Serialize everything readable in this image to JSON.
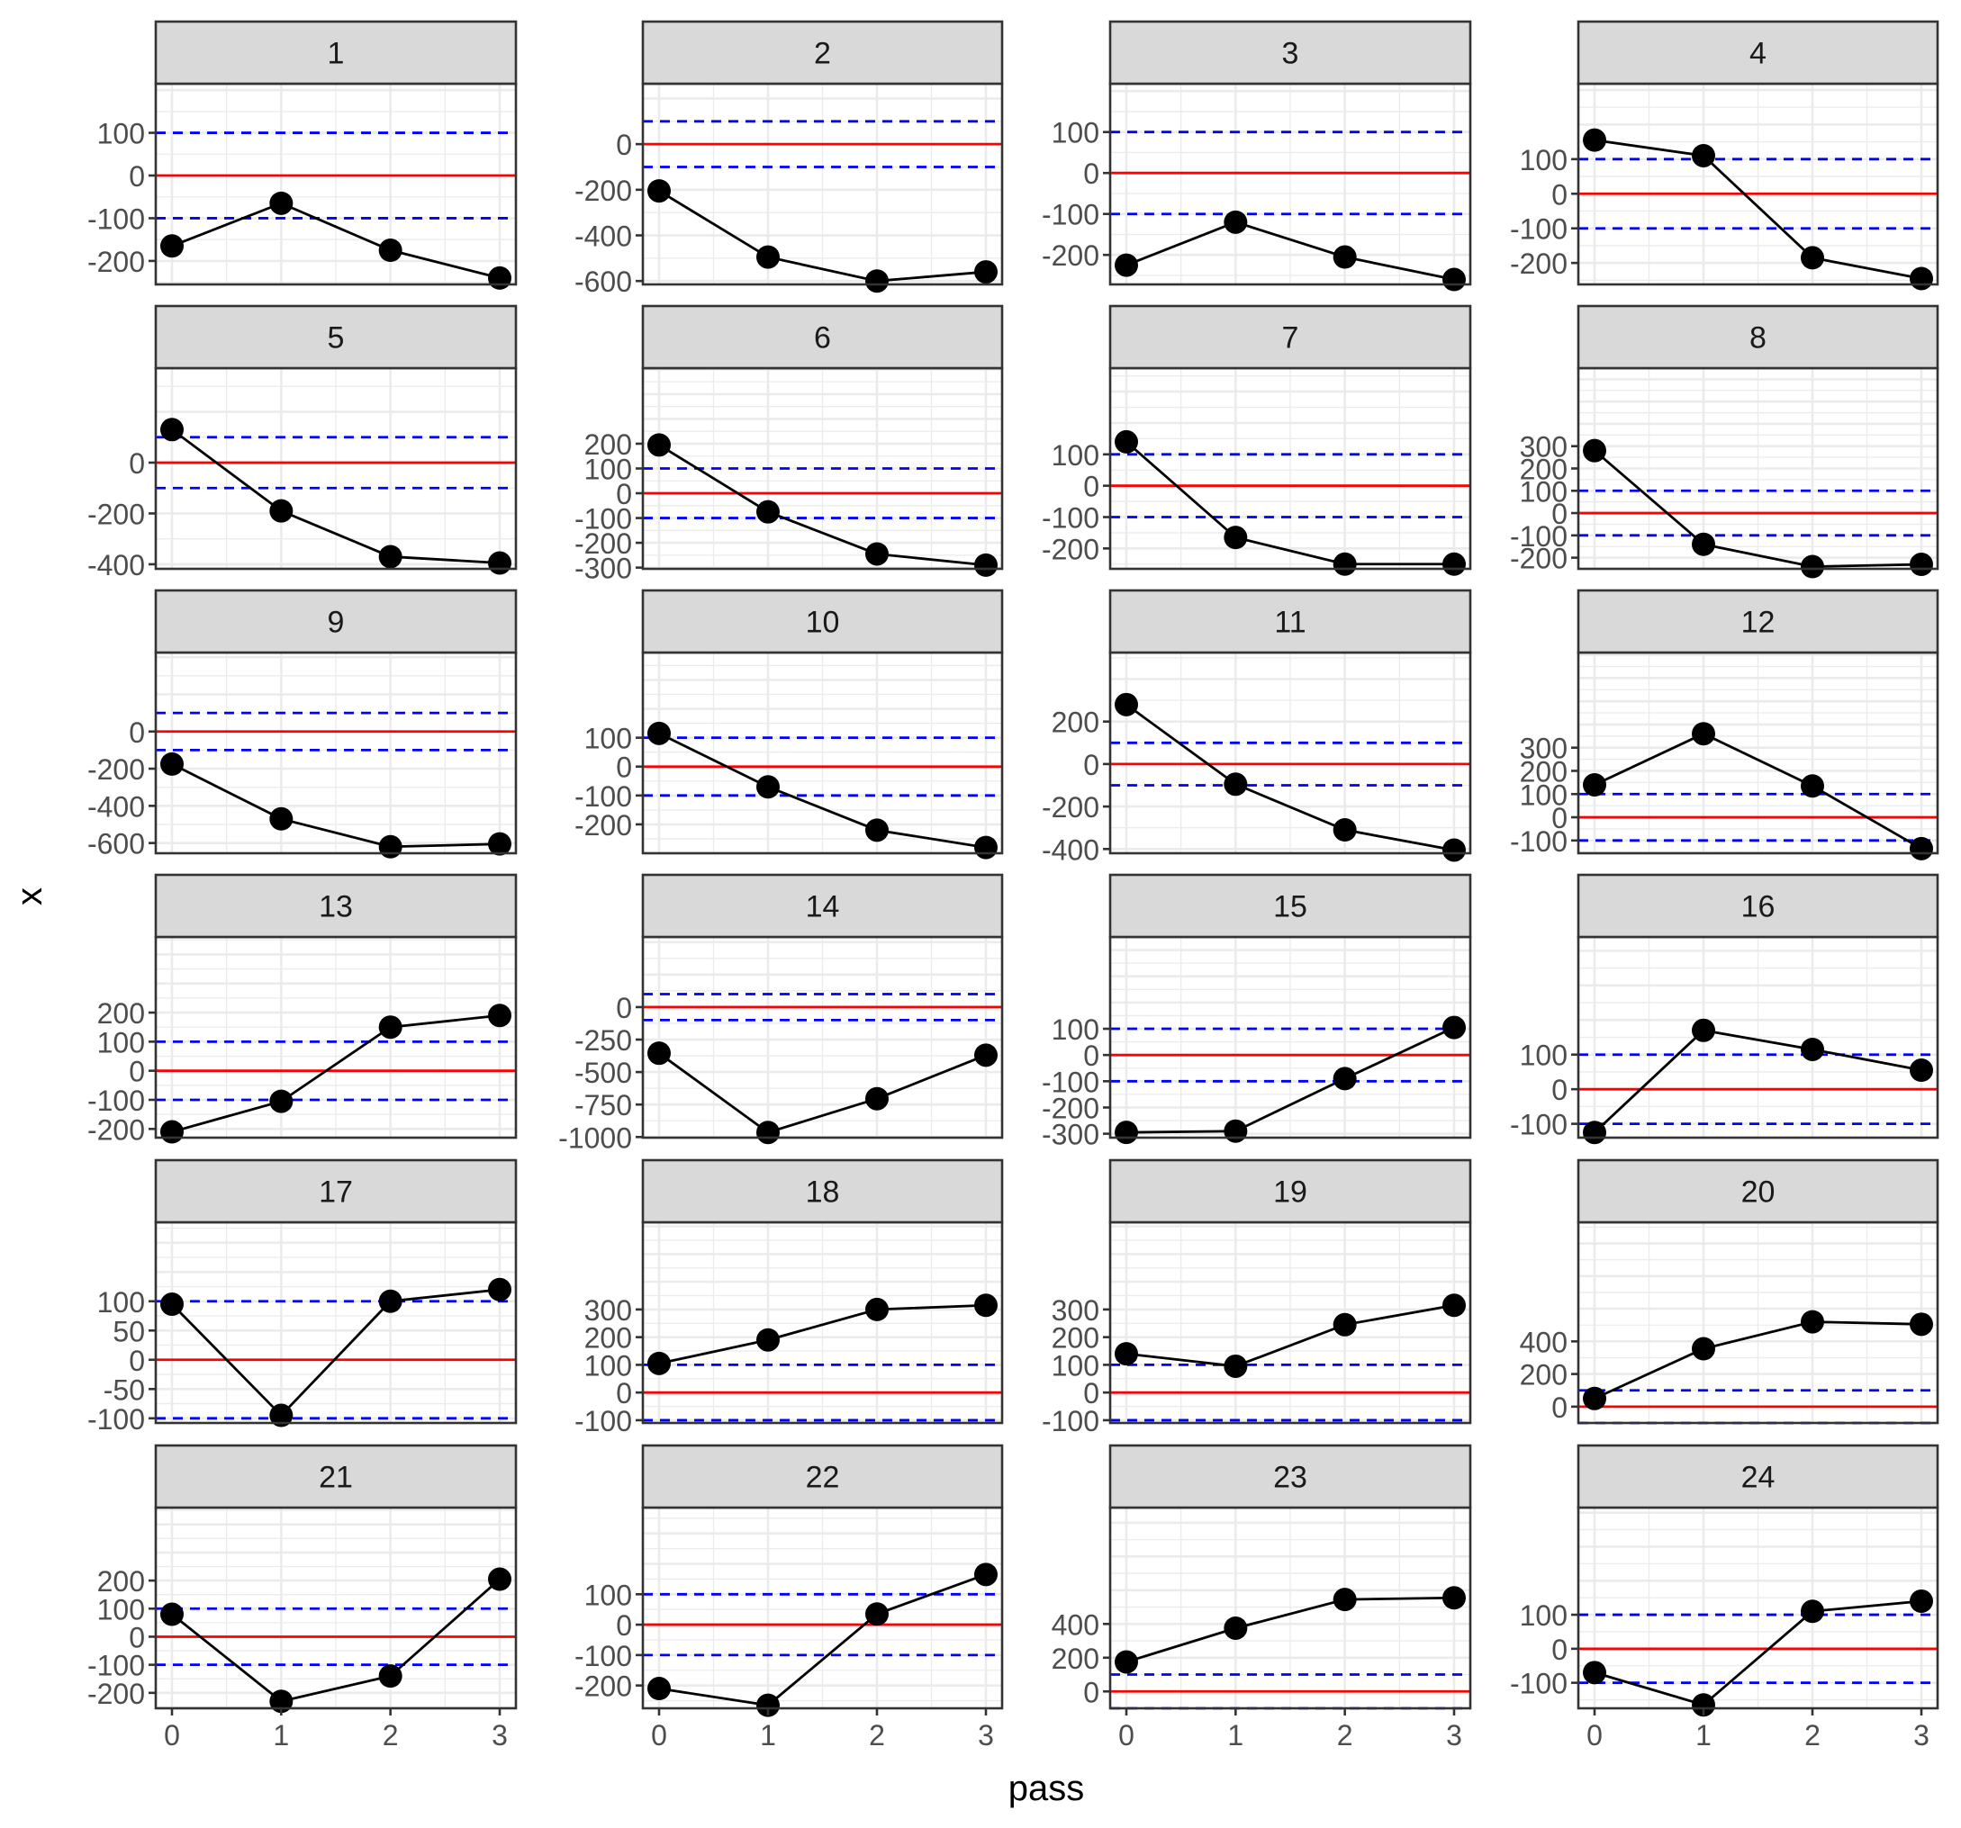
{
  "figure": {
    "x_label": "pass",
    "y_label": "x",
    "colors": {
      "point": "#000000",
      "line": "#000000",
      "zero_line": "#FF0000",
      "threshold_line": "#0000FF",
      "strip": "#D9D9D9",
      "grid": "#EBEBEB",
      "tick_text": "#4D4D4D"
    }
  },
  "chart_data": [
    {
      "type": "line",
      "panel": "1",
      "x": [
        0,
        1,
        2,
        3
      ],
      "y": [
        -165,
        -65,
        -175,
        -240
      ],
      "ylim": [
        -255,
        215
      ],
      "yticks": [
        100,
        0,
        -100,
        -200
      ],
      "ref_lines": {
        "zero": 0,
        "thresholds": [
          100,
          -100
        ]
      }
    },
    {
      "type": "line",
      "panel": "2",
      "x": [
        0,
        1,
        2,
        3
      ],
      "y": [
        -205,
        -495,
        -600,
        -560
      ],
      "ylim": [
        -615,
        265
      ],
      "yticks": [
        0,
        -200,
        -400,
        -600
      ],
      "ref_lines": {
        "zero": 0,
        "thresholds": [
          100,
          -100
        ]
      }
    },
    {
      "type": "line",
      "panel": "3",
      "x": [
        0,
        1,
        2,
        3
      ],
      "y": [
        -225,
        -120,
        -205,
        -260
      ],
      "ylim": [
        -272,
        218
      ],
      "yticks": [
        100,
        0,
        -100,
        -200
      ],
      "ref_lines": {
        "zero": 0,
        "thresholds": [
          100,
          -100
        ]
      }
    },
    {
      "type": "line",
      "panel": "4",
      "x": [
        0,
        1,
        2,
        3
      ],
      "y": [
        155,
        110,
        -185,
        -245
      ],
      "ylim": [
        -262,
        318
      ],
      "yticks": [
        100,
        0,
        -100,
        -200
      ],
      "ref_lines": {
        "zero": 0,
        "thresholds": [
          100,
          -100
        ]
      }
    },
    {
      "type": "line",
      "panel": "5",
      "x": [
        0,
        1,
        2,
        3
      ],
      "y": [
        130,
        -190,
        -370,
        -395
      ],
      "ylim": [
        -418,
        372
      ],
      "yticks": [
        0,
        -200,
        -400
      ],
      "ref_lines": {
        "zero": 0,
        "thresholds": [
          100,
          -100
        ]
      }
    },
    {
      "type": "line",
      "panel": "6",
      "x": [
        0,
        1,
        2,
        3
      ],
      "y": [
        195,
        -75,
        -245,
        -290
      ],
      "ylim": [
        -305,
        505
      ],
      "yticks": [
        200,
        100,
        0,
        -100,
        -200,
        -300
      ],
      "ref_lines": {
        "zero": 0,
        "thresholds": [
          100,
          -100
        ]
      }
    },
    {
      "type": "line",
      "panel": "7",
      "x": [
        0,
        1,
        2,
        3
      ],
      "y": [
        140,
        -165,
        -250,
        -250
      ],
      "ylim": [
        -265,
        375
      ],
      "yticks": [
        100,
        0,
        -100,
        -200
      ],
      "ref_lines": {
        "zero": 0,
        "thresholds": [
          100,
          -100
        ]
      }
    },
    {
      "type": "line",
      "panel": "8",
      "x": [
        0,
        1,
        2,
        3
      ],
      "y": [
        280,
        -140,
        -240,
        -230
      ],
      "ylim": [
        -250,
        650
      ],
      "yticks": [
        300,
        200,
        100,
        0,
        -100,
        -200
      ],
      "ref_lines": {
        "zero": 0,
        "thresholds": [
          100,
          -100
        ]
      }
    },
    {
      "type": "line",
      "panel": "9",
      "x": [
        0,
        1,
        2,
        3
      ],
      "y": [
        -175,
        -470,
        -620,
        -605
      ],
      "ylim": [
        -655,
        425
      ],
      "yticks": [
        0,
        -200,
        -400,
        -600
      ],
      "ref_lines": {
        "zero": 0,
        "thresholds": [
          100,
          -100
        ]
      }
    },
    {
      "type": "line",
      "panel": "10",
      "x": [
        0,
        1,
        2,
        3
      ],
      "y": [
        115,
        -70,
        -220,
        -280
      ],
      "ylim": [
        -300,
        395
      ],
      "yticks": [
        100,
        0,
        -100,
        -200
      ],
      "ref_lines": {
        "zero": 0,
        "thresholds": [
          100,
          -100
        ]
      }
    },
    {
      "type": "line",
      "panel": "11",
      "x": [
        0,
        1,
        2,
        3
      ],
      "y": [
        280,
        -95,
        -310,
        -405
      ],
      "ylim": [
        -420,
        525
      ],
      "yticks": [
        200,
        0,
        -200,
        -400
      ],
      "ref_lines": {
        "zero": 0,
        "thresholds": [
          100,
          -100
        ]
      }
    },
    {
      "type": "line",
      "panel": "12",
      "x": [
        0,
        1,
        2,
        3
      ],
      "y": [
        140,
        360,
        135,
        -135
      ],
      "ylim": [
        -155,
        710
      ],
      "yticks": [
        300,
        200,
        100,
        0,
        -100
      ],
      "ref_lines": {
        "zero": 0,
        "thresholds": [
          100,
          -100
        ]
      }
    },
    {
      "type": "line",
      "panel": "13",
      "x": [
        0,
        1,
        2,
        3
      ],
      "y": [
        -210,
        -105,
        150,
        190
      ],
      "ylim": [
        -230,
        460
      ],
      "yticks": [
        200,
        100,
        0,
        -100,
        -200
      ],
      "ref_lines": {
        "zero": 0,
        "thresholds": [
          100,
          -100
        ]
      }
    },
    {
      "type": "line",
      "panel": "14",
      "x": [
        0,
        1,
        2,
        3
      ],
      "y": [
        -355,
        -965,
        -705,
        -370
      ],
      "ylim": [
        -1005,
        540
      ],
      "yticks": [
        0,
        -250,
        -500,
        -750,
        -1000
      ],
      "ref_lines": {
        "zero": 0,
        "thresholds": [
          100,
          -100
        ]
      }
    },
    {
      "type": "line",
      "panel": "15",
      "x": [
        0,
        1,
        2,
        3
      ],
      "y": [
        -295,
        -290,
        -90,
        105
      ],
      "ylim": [
        -315,
        450
      ],
      "yticks": [
        100,
        0,
        -100,
        -200,
        -300
      ],
      "ref_lines": {
        "zero": 0,
        "thresholds": [
          100,
          -100
        ]
      }
    },
    {
      "type": "line",
      "panel": "16",
      "x": [
        0,
        1,
        2,
        3
      ],
      "y": [
        -125,
        170,
        115,
        55
      ],
      "ylim": [
        -140,
        440
      ],
      "yticks": [
        100,
        0,
        -100
      ],
      "ref_lines": {
        "zero": 0,
        "thresholds": [
          100,
          -100
        ]
      }
    },
    {
      "type": "line",
      "panel": "17",
      "x": [
        0,
        1,
        2,
        3
      ],
      "y": [
        95,
        -95,
        100,
        120
      ],
      "ylim": [
        -108,
        235
      ],
      "yticks": [
        100,
        50,
        0,
        -50,
        -100
      ],
      "ref_lines": {
        "zero": 0,
        "thresholds": [
          100,
          -100
        ]
      }
    },
    {
      "type": "line",
      "panel": "18",
      "x": [
        0,
        1,
        2,
        3
      ],
      "y": [
        105,
        190,
        300,
        315
      ],
      "ylim": [
        -110,
        615
      ],
      "yticks": [
        300,
        200,
        100,
        0,
        -100
      ],
      "ref_lines": {
        "zero": 0,
        "thresholds": [
          100,
          -100
        ]
      }
    },
    {
      "type": "line",
      "panel": "19",
      "x": [
        0,
        1,
        2,
        3
      ],
      "y": [
        140,
        95,
        245,
        315
      ],
      "ylim": [
        -110,
        615
      ],
      "yticks": [
        300,
        200,
        100,
        0,
        -100
      ],
      "ref_lines": {
        "zero": 0,
        "thresholds": [
          100,
          -100
        ]
      }
    },
    {
      "type": "line",
      "panel": "20",
      "x": [
        0,
        1,
        2,
        3
      ],
      "y": [
        50,
        355,
        520,
        505
      ],
      "ylim": [
        -100,
        1130
      ],
      "yticks": [
        400,
        200,
        0
      ],
      "ref_lines": {
        "zero": 0,
        "thresholds": [
          100,
          -100
        ]
      }
    },
    {
      "type": "line",
      "panel": "21",
      "x": [
        0,
        1,
        2,
        3
      ],
      "y": [
        80,
        -230,
        -140,
        205
      ],
      "ylim": [
        -255,
        460
      ],
      "yticks": [
        200,
        100,
        0,
        -100,
        -200
      ],
      "ref_lines": {
        "zero": 0,
        "thresholds": [
          100,
          -100
        ]
      }
    },
    {
      "type": "line",
      "panel": "22",
      "x": [
        0,
        1,
        2,
        3
      ],
      "y": [
        -210,
        -265,
        35,
        165
      ],
      "ylim": [
        -275,
        385
      ],
      "yticks": [
        100,
        0,
        -100,
        -200
      ],
      "ref_lines": {
        "zero": 0,
        "thresholds": [
          100,
          -100
        ]
      }
    },
    {
      "type": "line",
      "panel": "23",
      "x": [
        0,
        1,
        2,
        3
      ],
      "y": [
        175,
        375,
        545,
        555
      ],
      "ylim": [
        -100,
        1090
      ],
      "yticks": [
        400,
        200,
        0
      ],
      "ref_lines": {
        "zero": 0,
        "thresholds": [
          100,
          -100
        ]
      }
    },
    {
      "type": "line",
      "panel": "24",
      "x": [
        0,
        1,
        2,
        3
      ],
      "y": [
        -70,
        -165,
        110,
        140
      ],
      "ylim": [
        -175,
        415
      ],
      "yticks": [
        100,
        0,
        -100
      ],
      "ref_lines": {
        "zero": 0,
        "thresholds": [
          100,
          -100
        ]
      }
    }
  ]
}
